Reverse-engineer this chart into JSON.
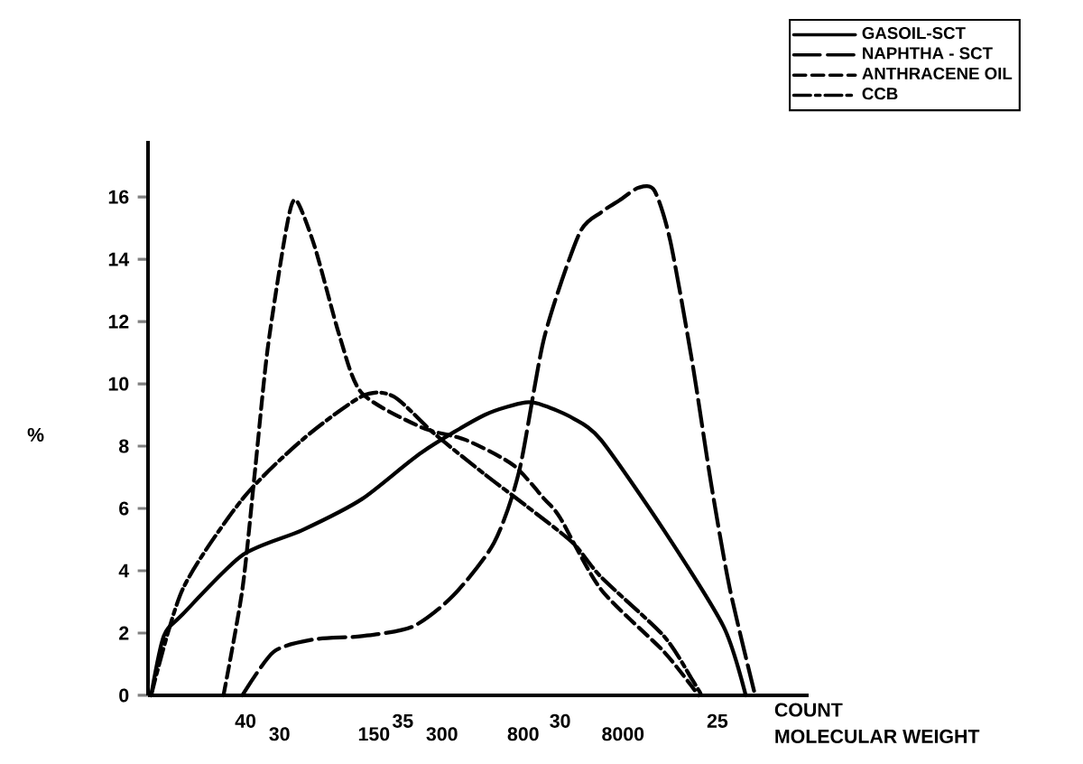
{
  "chart_data": {
    "type": "line",
    "xlabel": "COUNT",
    "ylabel": "%",
    "xlim": [
      43.1,
      22.1
    ],
    "xticks": [
      40,
      35,
      30,
      25
    ],
    "ylim": [
      0,
      17.8
    ],
    "yticks": [
      0,
      2,
      4,
      6,
      8,
      10,
      12,
      14,
      16
    ],
    "annotations": [
      "30",
      "150",
      "300",
      "800",
      "8000",
      "MOLECULAR WEIGHT"
    ],
    "legend": "top right",
    "series": [
      {
        "name": "GASOIL-SCT",
        "color": "#000000",
        "line_style": "solid",
        "x": [
          43.0,
          42.6,
          42.0,
          40.1,
          38.2,
          36.3,
          34.4,
          32.4,
          31.1,
          30.5,
          29.6,
          28.7,
          26.7,
          24.8,
          24.1
        ],
        "values": [
          0,
          1.9,
          2.6,
          4.5,
          5.3,
          6.3,
          7.8,
          9.0,
          9.4,
          9.3,
          8.9,
          8.2,
          5.3,
          2.2,
          0
        ]
      },
      {
        "name": "NAPHTHA - SCT",
        "color": "#000000",
        "line_style": "long dashed",
        "x": [
          40.1,
          39.1,
          37.8,
          36.3,
          34.7,
          33.4,
          32.1,
          31.3,
          30.5,
          29.4,
          28.7,
          28.1,
          27.5,
          27.0,
          26.5,
          25.8,
          25.2,
          24.6,
          23.8
        ],
        "values": [
          0,
          1.4,
          1.8,
          1.9,
          2.2,
          3.2,
          4.9,
          7.2,
          11.5,
          14.8,
          15.5,
          15.9,
          16.3,
          16.2,
          14.6,
          10.7,
          6.8,
          3.4,
          0
        ]
      },
      {
        "name": "ANTHRACENE OIL",
        "color": "#000000",
        "line_style": "dashed",
        "x": [
          40.7,
          40.1,
          39.7,
          39.3,
          38.7,
          38.4,
          37.8,
          37.0,
          36.3,
          34.4,
          33.0,
          31.5,
          30.5,
          30.0,
          28.7,
          26.7,
          25.6
        ],
        "values": [
          0,
          3.4,
          7.2,
          11.1,
          15.0,
          15.9,
          14.4,
          11.5,
          9.7,
          8.6,
          8.2,
          7.4,
          6.3,
          5.7,
          3.4,
          1.4,
          0
        ]
      },
      {
        "name": "CCB",
        "color": "#000000",
        "line_style": "dash dot",
        "x": [
          43.0,
          42.0,
          40.1,
          38.2,
          36.3,
          35.3,
          34.0,
          32.4,
          31.1,
          29.6,
          28.7,
          26.7,
          25.8,
          25.5
        ],
        "values": [
          0,
          3.4,
          6.3,
          8.2,
          9.6,
          9.6,
          8.4,
          7.1,
          6.1,
          4.9,
          3.8,
          1.9,
          0.5,
          0
        ]
      }
    ]
  }
}
